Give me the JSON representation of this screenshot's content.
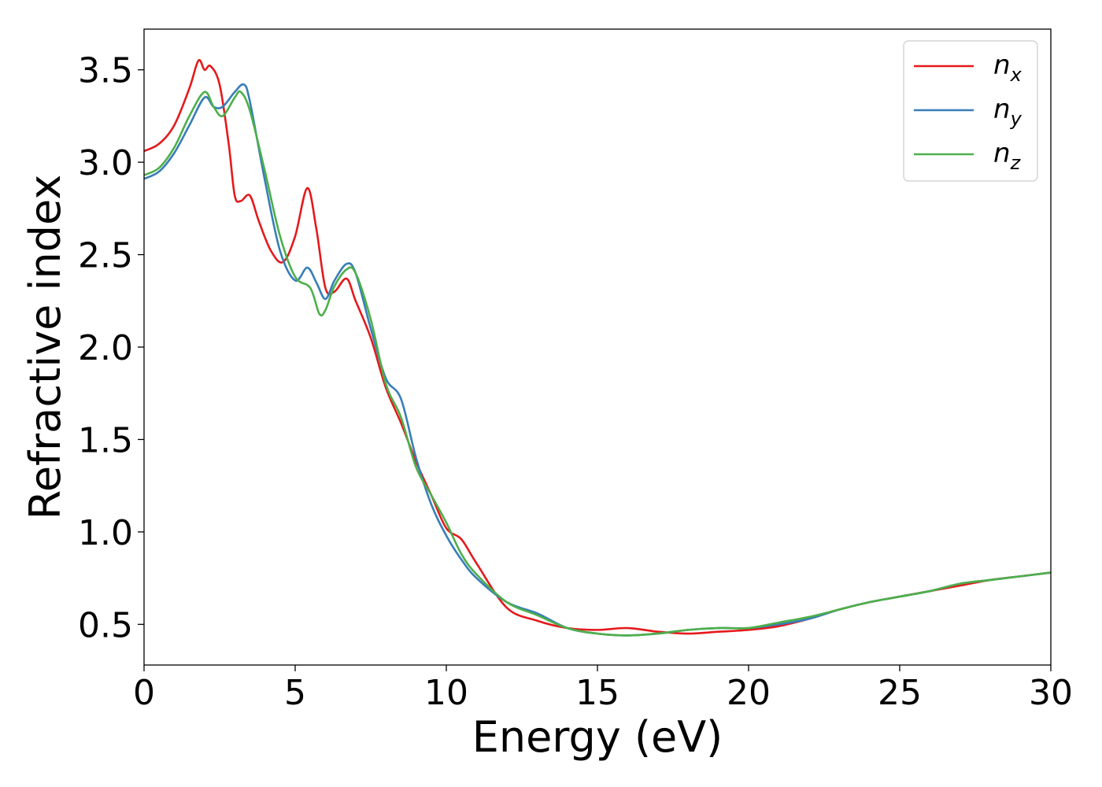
{
  "chart_data": {
    "type": "line",
    "title": "",
    "xlabel": "Energy (eV)",
    "ylabel": "Refractive index",
    "xlim": [
      0,
      30
    ],
    "ylim": [
      0.28,
      3.72
    ],
    "xticks": [
      0,
      5,
      10,
      15,
      20,
      25,
      30
    ],
    "xtick_labels": [
      "0",
      "5",
      "10",
      "15",
      "20",
      "25",
      "30"
    ],
    "yticks": [
      0.5,
      1.0,
      1.5,
      2.0,
      2.5,
      3.0,
      3.5
    ],
    "ytick_labels": [
      "0.5",
      "1.0",
      "1.5",
      "2.0",
      "2.5",
      "3.0",
      "3.5"
    ],
    "grid": false,
    "legend_position": "top-right",
    "series": [
      {
        "name": "n",
        "subscript": "x",
        "color": "#e41a1c",
        "x": [
          0,
          0.5,
          1.0,
          1.5,
          1.8,
          2.0,
          2.2,
          2.5,
          2.8,
          3.0,
          3.2,
          3.5,
          3.8,
          4.2,
          4.6,
          5.0,
          5.4,
          5.7,
          6.0,
          6.3,
          6.7,
          7.0,
          7.5,
          8.0,
          8.5,
          9.0,
          9.5,
          10.0,
          10.5,
          11.0,
          12.0,
          13.0,
          14.0,
          15.0,
          16.0,
          17.0,
          18.0,
          19.0,
          20.0,
          21.0,
          22.0,
          23.0,
          24.0,
          25.0,
          26.0,
          27.0,
          28.0,
          29.0,
          30.0
        ],
        "y": [
          3.06,
          3.1,
          3.2,
          3.4,
          3.55,
          3.5,
          3.52,
          3.42,
          3.1,
          2.82,
          2.79,
          2.82,
          2.68,
          2.52,
          2.46,
          2.6,
          2.86,
          2.64,
          2.32,
          2.3,
          2.37,
          2.25,
          2.05,
          1.78,
          1.59,
          1.38,
          1.2,
          1.02,
          0.96,
          0.83,
          0.59,
          0.52,
          0.48,
          0.47,
          0.48,
          0.46,
          0.45,
          0.46,
          0.47,
          0.49,
          0.53,
          0.58,
          0.62,
          0.65,
          0.68,
          0.71,
          0.74,
          0.76,
          0.78
        ]
      },
      {
        "name": "n",
        "subscript": "y",
        "color": "#377eb8",
        "x": [
          0,
          0.5,
          1.0,
          1.5,
          2.0,
          2.3,
          2.6,
          3.0,
          3.3,
          3.5,
          4.0,
          4.5,
          5.0,
          5.4,
          5.7,
          6.0,
          6.3,
          6.7,
          7.0,
          7.5,
          8.0,
          8.5,
          9.0,
          9.5,
          10.0,
          10.5,
          11.0,
          12.0,
          13.0,
          14.0,
          15.0,
          16.0,
          17.0,
          18.0,
          19.0,
          20.0,
          21.0,
          22.0,
          23.0,
          24.0,
          25.0,
          26.0,
          27.0,
          28.0,
          29.0,
          30.0
        ],
        "y": [
          2.91,
          2.95,
          3.05,
          3.2,
          3.35,
          3.3,
          3.3,
          3.38,
          3.42,
          3.33,
          2.9,
          2.52,
          2.36,
          2.43,
          2.35,
          2.26,
          2.36,
          2.45,
          2.4,
          2.1,
          1.83,
          1.72,
          1.4,
          1.15,
          0.98,
          0.85,
          0.75,
          0.62,
          0.56,
          0.48,
          0.45,
          0.44,
          0.45,
          0.47,
          0.48,
          0.48,
          0.5,
          0.53,
          0.58,
          0.62,
          0.65,
          0.68,
          0.72,
          0.74,
          0.76,
          0.78
        ]
      },
      {
        "name": "n",
        "subscript": "z",
        "color": "#4daf4a",
        "x": [
          0,
          0.5,
          1.0,
          1.5,
          2.0,
          2.3,
          2.6,
          3.0,
          3.2,
          3.5,
          4.0,
          4.5,
          5.0,
          5.5,
          5.8,
          6.0,
          6.3,
          6.7,
          7.0,
          7.5,
          8.0,
          8.5,
          9.0,
          9.5,
          10.0,
          10.5,
          11.0,
          12.0,
          13.0,
          14.0,
          15.0,
          16.0,
          17.0,
          18.0,
          19.0,
          20.0,
          21.0,
          22.0,
          23.0,
          24.0,
          25.0,
          26.0,
          27.0,
          28.0,
          29.0,
          30.0
        ],
        "y": [
          2.93,
          2.97,
          3.08,
          3.25,
          3.38,
          3.3,
          3.25,
          3.35,
          3.38,
          3.28,
          2.95,
          2.6,
          2.38,
          2.32,
          2.18,
          2.2,
          2.33,
          2.42,
          2.4,
          2.15,
          1.8,
          1.62,
          1.35,
          1.2,
          1.05,
          0.88,
          0.77,
          0.62,
          0.55,
          0.48,
          0.45,
          0.44,
          0.45,
          0.47,
          0.48,
          0.48,
          0.51,
          0.54,
          0.58,
          0.62,
          0.65,
          0.68,
          0.72,
          0.74,
          0.76,
          0.78
        ]
      }
    ]
  }
}
